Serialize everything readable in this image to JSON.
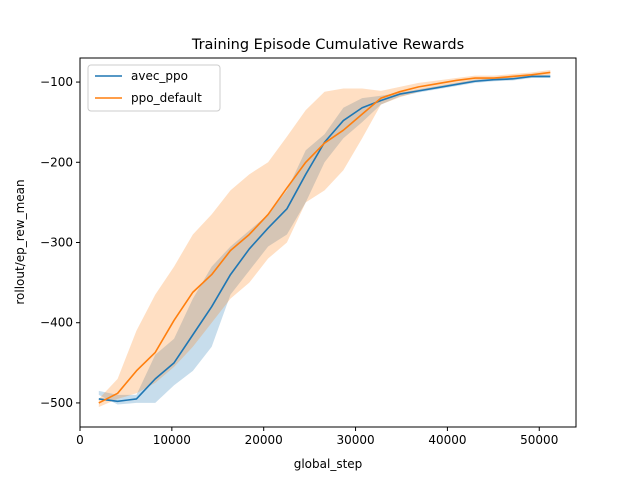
{
  "chart_data": {
    "type": "line",
    "title": "Training Episode Cumulative Rewards",
    "xlabel": "global_step",
    "ylabel": "rollout/ep_rew_mean",
    "xlim": [
      0,
      54000
    ],
    "ylim": [
      -530,
      -70
    ],
    "xticks": [
      0,
      10000,
      20000,
      30000,
      40000,
      50000
    ],
    "xtick_labels": [
      "0",
      "10000",
      "20000",
      "30000",
      "40000",
      "50000"
    ],
    "yticks": [
      -500,
      -400,
      -300,
      -200,
      -100
    ],
    "ytick_labels": [
      "−500",
      "−400",
      "−300",
      "−200",
      "−100"
    ],
    "grid": false,
    "legend_position": "top-left",
    "series": [
      {
        "name": "avec_ppo",
        "color": "#1f77b4",
        "x": [
          2048,
          4096,
          6144,
          8192,
          10240,
          12288,
          14336,
          16384,
          18432,
          20480,
          22528,
          24576,
          26624,
          28672,
          30720,
          32768,
          34816,
          36864,
          38912,
          40960,
          43008,
          45056,
          47104,
          49152,
          51200
        ],
        "y": [
          -495,
          -498,
          -495,
          -470,
          -450,
          -415,
          -380,
          -340,
          -308,
          -282,
          -258,
          -215,
          -175,
          -148,
          -132,
          -123,
          -115,
          -111,
          -107,
          -103,
          -99,
          -97,
          -96,
          -93,
          -93
        ],
        "lower": [
          -490,
          -502,
          -500,
          -500,
          -478,
          -460,
          -430,
          -365,
          -335,
          -305,
          -290,
          -250,
          -200,
          -170,
          -150,
          -128,
          -118,
          -113,
          -109,
          -105,
          -101,
          -99,
          -98,
          -95,
          -95
        ],
        "upper": [
          -485,
          -490,
          -490,
          -440,
          -420,
          -370,
          -330,
          -305,
          -285,
          -265,
          -235,
          -185,
          -165,
          -132,
          -120,
          -117,
          -113,
          -109,
          -105,
          -101,
          -97,
          -95,
          -94,
          -91,
          -91
        ]
      },
      {
        "name": "ppo_default",
        "color": "#ff7f0e",
        "x": [
          2048,
          4096,
          6144,
          8192,
          10240,
          12288,
          14336,
          16384,
          18432,
          20480,
          22528,
          24576,
          26624,
          28672,
          30720,
          32768,
          34816,
          36864,
          38912,
          40960,
          43008,
          45056,
          47104,
          49152,
          51200
        ],
        "y": [
          -500,
          -488,
          -460,
          -437,
          -397,
          -362,
          -340,
          -310,
          -290,
          -265,
          -232,
          -200,
          -176,
          -160,
          -140,
          -120,
          -112,
          -106,
          -102,
          -98,
          -95,
          -95,
          -93,
          -91,
          -88
        ],
        "lower": [
          -505,
          -495,
          -488,
          -475,
          -455,
          -430,
          -400,
          -370,
          -350,
          -320,
          -300,
          -250,
          -235,
          -210,
          -170,
          -128,
          -119,
          -112,
          -106,
          -102,
          -99,
          -98,
          -96,
          -94,
          -91
        ],
        "upper": [
          -495,
          -470,
          -410,
          -365,
          -330,
          -290,
          -265,
          -235,
          -215,
          -200,
          -168,
          -135,
          -112,
          -108,
          -108,
          -111,
          -106,
          -101,
          -98,
          -95,
          -92,
          -92,
          -90,
          -88,
          -85
        ]
      }
    ]
  }
}
